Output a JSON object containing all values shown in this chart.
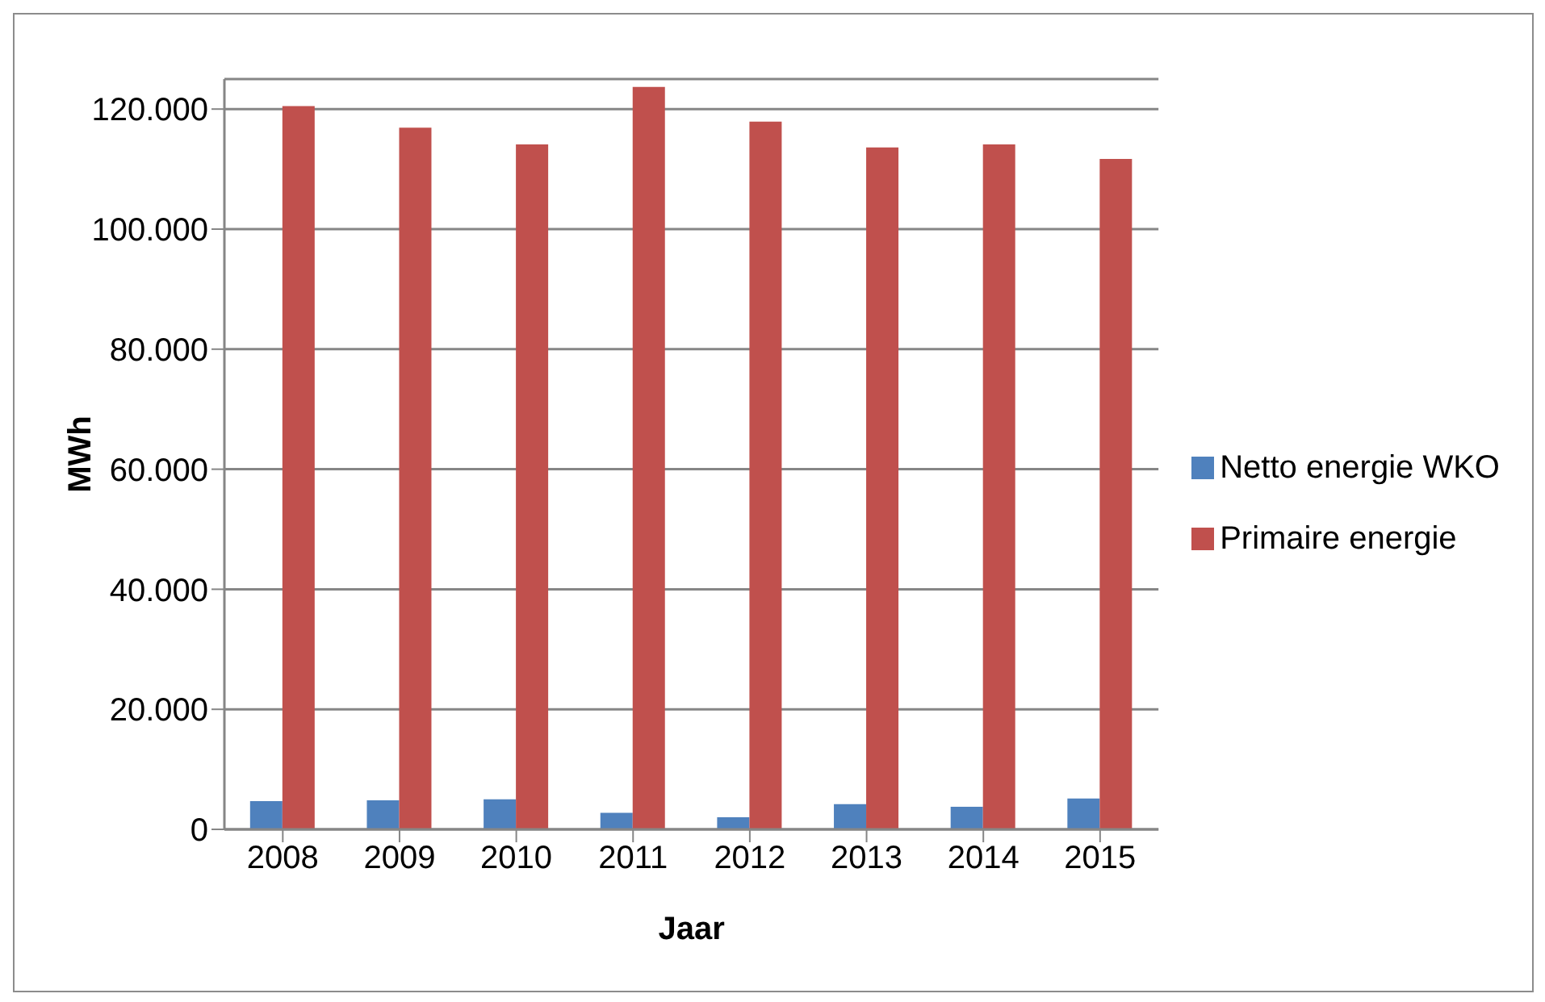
{
  "chart_data": {
    "type": "bar",
    "xlabel": "Jaar",
    "ylabel": "MWh",
    "categories": [
      "2008",
      "2009",
      "2010",
      "2011",
      "2012",
      "2013",
      "2014",
      "2015"
    ],
    "series": [
      {
        "name": "Netto energie WKO",
        "color": "#4f81bd",
        "values": [
          4700,
          4850,
          5000,
          2750,
          2000,
          4200,
          3750,
          5150
        ]
      },
      {
        "name": "Primaire energie",
        "color": "#c0504d",
        "values": [
          120500,
          116900,
          114100,
          123700,
          117900,
          113600,
          114100,
          111700
        ]
      }
    ],
    "ylim": [
      0,
      125000
    ],
    "yticks": [
      {
        "value": 0,
        "label": "0"
      },
      {
        "value": 20000,
        "label": "20.000"
      },
      {
        "value": 40000,
        "label": "40.000"
      },
      {
        "value": 60000,
        "label": "60.000"
      },
      {
        "value": 80000,
        "label": "80.000"
      },
      {
        "value": 100000,
        "label": "100.000"
      },
      {
        "value": 120000,
        "label": "120.000"
      }
    ],
    "grid": "y",
    "legend": "right"
  }
}
